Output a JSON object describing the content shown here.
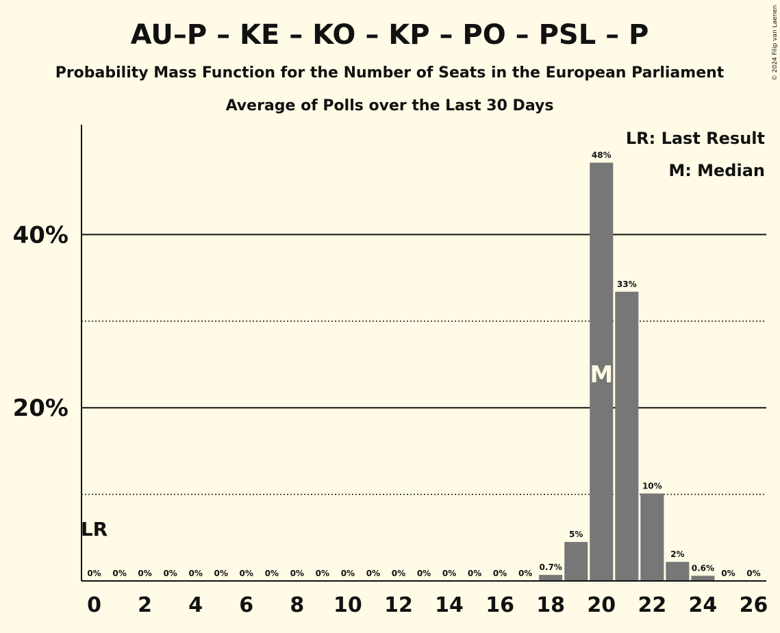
{
  "title": "AU–P – KE – KO – KP – PO – PSL – P",
  "subtitle1": "Probability Mass Function for the Number of Seats in the European Parliament",
  "subtitle2": "Average of Polls over the Last 30 Days",
  "legend": {
    "last_result": "LR: Last Result",
    "median": "M: Median"
  },
  "copyright": "© 2024 Filip van Laenen",
  "colors": {
    "background": "#fffbe6",
    "bar": "#777777",
    "text": "#111111"
  },
  "chart_data": {
    "type": "bar",
    "x": [
      0,
      1,
      2,
      3,
      4,
      5,
      6,
      7,
      8,
      9,
      10,
      11,
      12,
      13,
      14,
      15,
      16,
      17,
      18,
      19,
      20,
      21,
      22,
      23,
      24,
      25,
      26
    ],
    "values": [
      0,
      0,
      0,
      0,
      0,
      0,
      0,
      0,
      0,
      0,
      0,
      0,
      0,
      0,
      0,
      0,
      0,
      0,
      0.7,
      4.5,
      48.3,
      33.4,
      10.1,
      2.2,
      0.6,
      0,
      0
    ],
    "value_labels": [
      "0%",
      "0%",
      "0%",
      "0%",
      "0%",
      "0%",
      "0%",
      "0%",
      "0%",
      "0%",
      "0%",
      "0%",
      "0%",
      "0%",
      "0%",
      "0%",
      "0%",
      "0%",
      "0.7%",
      "5%",
      "48%",
      "33%",
      "10%",
      "2%",
      "0.6%",
      "0%",
      "0%"
    ],
    "x_tick_labels": [
      "0",
      "2",
      "4",
      "6",
      "8",
      "10",
      "12",
      "14",
      "16",
      "18",
      "20",
      "22",
      "24",
      "26"
    ],
    "y_major_ticks": [
      20,
      40
    ],
    "y_major_labels": [
      "20%",
      "40%"
    ],
    "y_minor_ticks": [
      10,
      30
    ],
    "ylim": [
      0,
      52.5
    ],
    "last_result_seat": 0,
    "last_result_marker": "LR",
    "median_seat": 20,
    "median_marker": "M",
    "grid": true,
    "legend_position": "top-right"
  }
}
